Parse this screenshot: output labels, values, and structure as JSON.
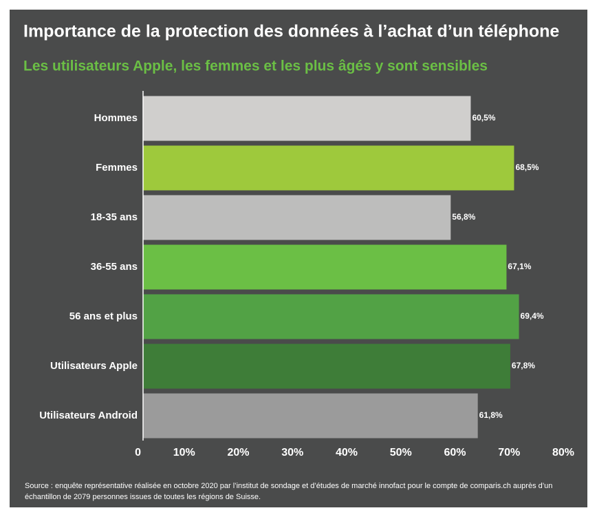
{
  "chart_data": {
    "type": "bar",
    "orientation": "horizontal",
    "title": "Importance de la protection des données à l’achat d’un téléphone",
    "subtitle": "Les utilisateurs Apple, les femmes et les plus âgés y sont sensibles",
    "categories": [
      "Hommes",
      "Femmes",
      "18-35 ans",
      "36-55 ans",
      "56 ans et plus",
      "Utilisateurs Apple",
      "Utilisateurs Android"
    ],
    "values": [
      60.5,
      68.5,
      56.8,
      67.1,
      69.4,
      67.8,
      61.8
    ],
    "value_labels": [
      "60,5%",
      "68,5%",
      "56,8%",
      "67,1%",
      "69,4%",
      "67,8%",
      "61,8%"
    ],
    "colors": [
      "#d0cfcd",
      "#9ec93c",
      "#bdbdbc",
      "#6bbf45",
      "#52a245",
      "#3e7d38",
      "#9b9b9b"
    ],
    "xlim": [
      0,
      80
    ],
    "xticks": [
      0,
      {
        "value": 10,
        "label": "10%"
      },
      {
        "value": 20,
        "label": "20%"
      },
      {
        "value": 30,
        "label": "30%"
      },
      {
        "value": 40,
        "label": "40%"
      },
      {
        "value": 50,
        "label": "50%"
      },
      {
        "value": 60,
        "label": "60%"
      },
      {
        "value": 70,
        "label": "70%"
      },
      {
        "value": 80,
        "label": "80%"
      }
    ],
    "grid": false,
    "source": "Source : enquête représentative réalisée en octobre 2020 par l’institut de sondage et d’études de marché innofact pour le compte de comparis.ch auprès d’un échantillon de 2079 personnes issues de toutes les régions de Suisse."
  }
}
